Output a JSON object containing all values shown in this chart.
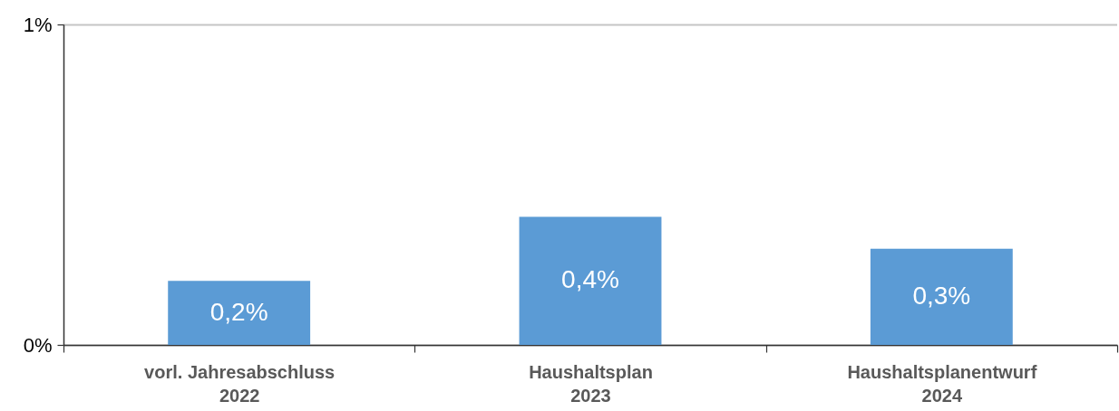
{
  "chart_data": {
    "type": "bar",
    "categories": [
      "vorl. Jahresabschluss\n2022",
      "Haushaltsplan\n2023",
      "Haushaltsplanentwurf\n2024"
    ],
    "values": [
      0.2,
      0.4,
      0.3
    ],
    "value_labels": [
      "0,2%",
      "0,4%",
      "0,3%"
    ],
    "color": "#5b9bd5",
    "ylim": [
      0,
      1
    ],
    "yticks": [
      {
        "value": 0,
        "label": "0%"
      },
      {
        "value": 1,
        "label": "1%"
      }
    ],
    "grid": "y"
  }
}
